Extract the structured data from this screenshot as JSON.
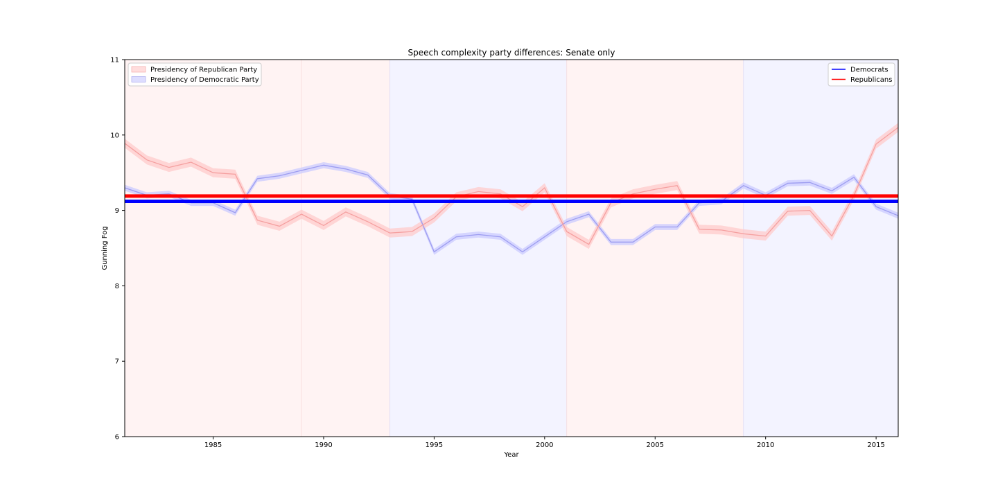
{
  "chart_data": {
    "type": "line",
    "title": "Speech complexity party differences: Senate only",
    "xlabel": "Year",
    "ylabel": "Gunning Fog",
    "xlim": [
      1981,
      2016
    ],
    "ylim": [
      6,
      11
    ],
    "xticks": [
      1985,
      1990,
      1995,
      2000,
      2005,
      2010,
      2015
    ],
    "yticks": [
      6,
      7,
      8,
      9,
      10,
      11
    ],
    "grid": false,
    "presidency_periods": [
      {
        "party": "Republican",
        "start": 1981,
        "end": 1989
      },
      {
        "party": "Republican",
        "start": 1989,
        "end": 1993
      },
      {
        "party": "Democratic",
        "start": 1993,
        "end": 2001
      },
      {
        "party": "Republican",
        "start": 2001,
        "end": 2009
      },
      {
        "party": "Democratic",
        "start": 2009,
        "end": 2016
      }
    ],
    "x": [
      1981,
      1982,
      1983,
      1984,
      1985,
      1986,
      1987,
      1988,
      1989,
      1990,
      1991,
      1992,
      1993,
      1994,
      1995,
      1996,
      1997,
      1998,
      1999,
      2000,
      2001,
      2002,
      2003,
      2004,
      2005,
      2006,
      2007,
      2008,
      2009,
      2010,
      2011,
      2012,
      2013,
      2014,
      2015,
      2016
    ],
    "series": [
      {
        "name": "Democrats",
        "color": "#0000ff",
        "values": [
          9.3,
          9.2,
          9.22,
          9.1,
          9.1,
          8.97,
          9.42,
          9.46,
          9.53,
          9.6,
          9.55,
          9.47,
          9.19,
          9.15,
          8.45,
          8.65,
          8.68,
          8.65,
          8.45,
          8.65,
          8.85,
          8.95,
          8.58,
          8.58,
          8.78,
          8.78,
          9.1,
          9.12,
          9.33,
          9.2,
          9.36,
          9.37,
          9.26,
          9.44,
          9.05,
          8.93
        ],
        "band": 0.04,
        "mean": 9.12
      },
      {
        "name": "Republicans",
        "color": "#ff0000",
        "values": [
          9.89,
          9.67,
          9.57,
          9.64,
          9.5,
          9.48,
          8.87,
          8.79,
          8.95,
          8.8,
          8.98,
          8.85,
          8.7,
          8.72,
          8.9,
          9.18,
          9.25,
          9.22,
          9.05,
          9.3,
          8.72,
          8.55,
          9.1,
          9.22,
          9.28,
          9.33,
          8.75,
          8.74,
          8.69,
          8.66,
          8.99,
          9.0,
          8.66,
          9.2,
          9.88,
          10.1
        ],
        "band": 0.06,
        "mean": 9.19
      }
    ],
    "legend_left": {
      "position": "upper-left",
      "entries": [
        {
          "label": "Presidency of Republican Party",
          "color": "#ffdddd",
          "edge": "#f6b3b3"
        },
        {
          "label": "Presidency of Democratic Party",
          "color": "#ddddff",
          "edge": "#b3b3f0"
        }
      ]
    },
    "legend_right": {
      "position": "upper-right",
      "entries": [
        {
          "label": "Democrats",
          "color": "#0000ff"
        },
        {
          "label": "Republicans",
          "color": "#ff0000"
        }
      ]
    },
    "colors": {
      "rep_span": "#fff3f3",
      "dem_span": "#f3f3ff",
      "dem_band": "#c8c8ff",
      "rep_band": "#ffc8c8",
      "dem_line": "#9c9cf0",
      "rep_line": "#f5a0a0"
    }
  }
}
